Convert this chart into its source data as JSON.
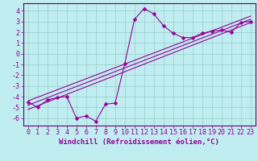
{
  "xlabel": "Windchill (Refroidissement éolien,°C)",
  "bg_color": "#c0eef0",
  "line_color": "#990099",
  "grid_color": "#99cccc",
  "x_data": [
    0,
    1,
    2,
    3,
    4,
    5,
    6,
    7,
    8,
    9,
    10,
    11,
    12,
    13,
    14,
    15,
    16,
    17,
    18,
    19,
    20,
    21,
    22,
    23
  ],
  "y_scatter": [
    -4.5,
    -5.0,
    -4.3,
    -4.1,
    -4.0,
    -6.0,
    -5.8,
    -6.3,
    -4.7,
    -4.6,
    -0.9,
    3.2,
    4.2,
    3.7,
    2.6,
    1.9,
    1.5,
    1.5,
    1.9,
    2.1,
    2.2,
    2.0,
    2.9,
    3.0
  ],
  "reg_lines": [
    {
      "x0": 0,
      "y0": -5.2,
      "x1": 23,
      "y1": 2.9
    },
    {
      "x0": 0,
      "y0": -4.8,
      "x1": 23,
      "y1": 3.2
    },
    {
      "x0": 0,
      "y0": -4.4,
      "x1": 23,
      "y1": 3.5
    }
  ],
  "xlim": [
    -0.5,
    23.5
  ],
  "ylim": [
    -6.7,
    4.7
  ],
  "yticks": [
    -6,
    -5,
    -4,
    -3,
    -2,
    -1,
    0,
    1,
    2,
    3,
    4
  ],
  "xticks": [
    0,
    1,
    2,
    3,
    4,
    5,
    6,
    7,
    8,
    9,
    10,
    11,
    12,
    13,
    14,
    15,
    16,
    17,
    18,
    19,
    20,
    21,
    22,
    23
  ],
  "xlabel_fontsize": 6.5,
  "tick_fontsize": 6.0,
  "marker_size": 2.5,
  "line_width": 0.8
}
